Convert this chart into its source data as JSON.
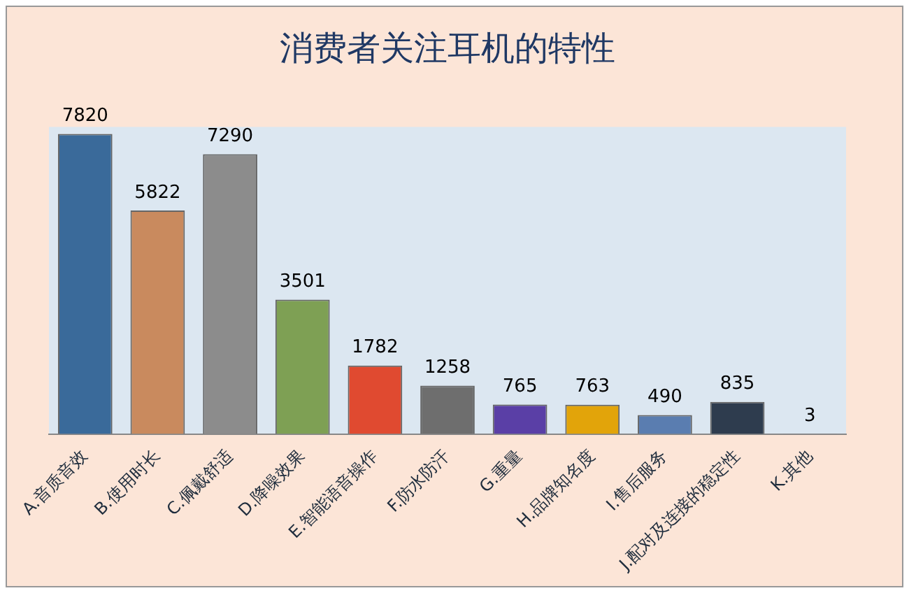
{
  "chart_data": {
    "type": "bar",
    "title": "消费者关注耳机的特性",
    "categories": [
      "A.音质音效",
      "B.使用时长",
      "C.佩戴舒适",
      "D.降噪效果",
      "E.智能语音操作",
      "F.防水防汗",
      "G.重量",
      "H.品牌知名度",
      "I.售后服务",
      "J.配对及连接的稳定性",
      "K.其他"
    ],
    "values": [
      7820,
      5822,
      7290,
      3501,
      1782,
      1258,
      765,
      763,
      490,
      835,
      3
    ],
    "colors": [
      "#3a6a9a",
      "#c98a5e",
      "#8c8c8c",
      "#7ea054",
      "#e04a30",
      "#6e6e6e",
      "#5a3fa6",
      "#e2a40a",
      "#5a7db0",
      "#2e3c4e",
      "#4a6fa5"
    ],
    "data_labels": true,
    "tick_labels": "x",
    "grid": false,
    "legend": false
  }
}
